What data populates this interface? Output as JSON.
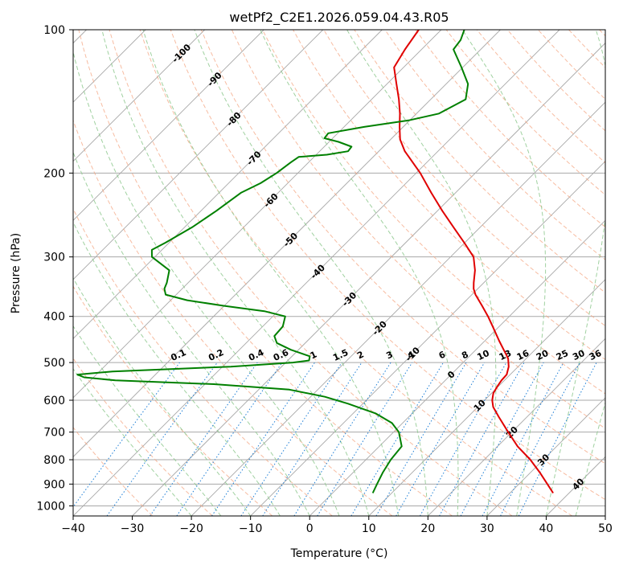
{
  "chart_data": {
    "type": "line",
    "title": "wetPf2_C2E1.2026.059.04.43.R05",
    "xlabel": "Temperature (°C)",
    "ylabel": "Pressure (hPa)",
    "xlim": [
      -40,
      50
    ],
    "ylim": [
      1050,
      100
    ],
    "y_scale": "log",
    "skew": "skew-T",
    "grid": true,
    "x_ticks": [
      "−40",
      "−30",
      "−20",
      "−10",
      "0",
      "10",
      "20",
      "30",
      "40",
      "50"
    ],
    "x_tick_values": [
      -40,
      -30,
      -20,
      -10,
      0,
      10,
      20,
      30,
      40,
      50
    ],
    "y_ticks": [
      "100",
      "200",
      "300",
      "400",
      "500",
      "600",
      "700",
      "800",
      "900",
      "1000"
    ],
    "y_tick_values": [
      100,
      200,
      300,
      400,
      500,
      600,
      700,
      800,
      900,
      1000
    ],
    "colors": {
      "temperature": "#e00000",
      "dewpoint": "#008000",
      "isotherm": "#a8a8a8",
      "dry_adiabat": "#f4a582",
      "moist_adiabat": "#8fc98f",
      "mixing_ratio": "#1e7fd6",
      "isotherm_label": "#1f5f9a",
      "warm_label": "#c83232"
    },
    "series": [
      {
        "key": "temperature",
        "color": "#e00000",
        "points": [
          {
            "p": 940,
            "t": 37.3
          },
          {
            "p": 900,
            "t": 34.8
          },
          {
            "p": 850,
            "t": 31.5
          },
          {
            "p": 800,
            "t": 27.8
          },
          {
            "p": 750,
            "t": 23.4
          },
          {
            "p": 700,
            "t": 19.4
          },
          {
            "p": 650,
            "t": 15.2
          },
          {
            "p": 620,
            "t": 12.6
          },
          {
            "p": 600,
            "t": 11.3
          },
          {
            "p": 580,
            "t": 10.3
          },
          {
            "p": 560,
            "t": 9.8
          },
          {
            "p": 545,
            "t": 9.5
          },
          {
            "p": 530,
            "t": 9.4
          },
          {
            "p": 510,
            "t": 8.4
          },
          {
            "p": 490,
            "t": 6.9
          },
          {
            "p": 470,
            "t": 4.7
          },
          {
            "p": 450,
            "t": 2.4
          },
          {
            "p": 420,
            "t": -1.1
          },
          {
            "p": 400,
            "t": -3.6
          },
          {
            "p": 380,
            "t": -6.4
          },
          {
            "p": 360,
            "t": -9.4
          },
          {
            "p": 350,
            "t": -10.7
          },
          {
            "p": 340,
            "t": -11.7
          },
          {
            "p": 320,
            "t": -13.6
          },
          {
            "p": 300,
            "t": -16.1
          },
          {
            "p": 280,
            "t": -20.1
          },
          {
            "p": 260,
            "t": -24.5
          },
          {
            "p": 240,
            "t": -29.2
          },
          {
            "p": 220,
            "t": -34.1
          },
          {
            "p": 200,
            "t": -39.3
          },
          {
            "p": 180,
            "t": -45.6
          },
          {
            "p": 170,
            "t": -48.4
          },
          {
            "p": 160,
            "t": -50.6
          },
          {
            "p": 150,
            "t": -52.8
          },
          {
            "p": 140,
            "t": -55.4
          },
          {
            "p": 130,
            "t": -58.4
          },
          {
            "p": 120,
            "t": -61.6
          },
          {
            "p": 110,
            "t": -62.8
          },
          {
            "p": 100,
            "t": -63.8
          }
        ]
      },
      {
        "key": "dewpoint",
        "color": "#008000",
        "points": [
          {
            "p": 940,
            "t": 6.8
          },
          {
            "p": 900,
            "t": 6.0
          },
          {
            "p": 850,
            "t": 5.0
          },
          {
            "p": 800,
            "t": 4.2
          },
          {
            "p": 750,
            "t": 3.8
          },
          {
            "p": 700,
            "t": 0.9
          },
          {
            "p": 670,
            "t": -1.8
          },
          {
            "p": 640,
            "t": -6.1
          },
          {
            "p": 610,
            "t": -12.5
          },
          {
            "p": 590,
            "t": -17.6
          },
          {
            "p": 570,
            "t": -24.8
          },
          {
            "p": 555,
            "t": -38.5
          },
          {
            "p": 545,
            "t": -55.8
          },
          {
            "p": 537,
            "t": -61.6
          },
          {
            "p": 530,
            "t": -63.2
          },
          {
            "p": 522,
            "t": -57.8
          },
          {
            "p": 510,
            "t": -38.6
          },
          {
            "p": 500,
            "t": -28.8
          },
          {
            "p": 495,
            "t": -26.4
          },
          {
            "p": 485,
            "t": -27.0
          },
          {
            "p": 470,
            "t": -31.3
          },
          {
            "p": 455,
            "t": -34.8
          },
          {
            "p": 440,
            "t": -36.4
          },
          {
            "p": 420,
            "t": -36.6
          },
          {
            "p": 400,
            "t": -37.9
          },
          {
            "p": 390,
            "t": -42.3
          },
          {
            "p": 380,
            "t": -50.1
          },
          {
            "p": 370,
            "t": -57.2
          },
          {
            "p": 360,
            "t": -61.8
          },
          {
            "p": 350,
            "t": -63.0
          },
          {
            "p": 340,
            "t": -63.6
          },
          {
            "p": 320,
            "t": -65.3
          },
          {
            "p": 300,
            "t": -70.5
          },
          {
            "p": 290,
            "t": -71.7
          },
          {
            "p": 280,
            "t": -70.6
          },
          {
            "p": 260,
            "t": -68.7
          },
          {
            "p": 240,
            "t": -67.4
          },
          {
            "p": 220,
            "t": -66.3
          },
          {
            "p": 210,
            "t": -64.6
          },
          {
            "p": 200,
            "t": -63.6
          },
          {
            "p": 190,
            "t": -63.0
          },
          {
            "p": 185,
            "t": -62.6
          },
          {
            "p": 183,
            "t": -58.2
          },
          {
            "p": 180,
            "t": -55.2
          },
          {
            "p": 176,
            "t": -55.4
          },
          {
            "p": 172,
            "t": -58.4
          },
          {
            "p": 169,
            "t": -61.4
          },
          {
            "p": 165,
            "t": -61.6
          },
          {
            "p": 160,
            "t": -56.6
          },
          {
            "p": 155,
            "t": -50.2
          },
          {
            "p": 150,
            "t": -46.2
          },
          {
            "p": 140,
            "t": -44.1
          },
          {
            "p": 130,
            "t": -46.3
          },
          {
            "p": 120,
            "t": -50.2
          },
          {
            "p": 110,
            "t": -54.6
          },
          {
            "p": 105,
            "t": -55.0
          },
          {
            "p": 100,
            "t": -56.1
          }
        ]
      }
    ],
    "isotherm_labels": [
      {
        "text": "-100",
        "t": -100,
        "p": 112
      },
      {
        "text": "-90",
        "t": -90,
        "p": 127
      },
      {
        "text": "-80",
        "t": -80,
        "p": 154
      },
      {
        "text": "-70",
        "t": -70,
        "p": 186
      },
      {
        "text": "-60",
        "t": -60,
        "p": 228
      },
      {
        "text": "-50",
        "t": -50,
        "p": 276
      },
      {
        "text": "-40",
        "t": -40,
        "p": 322
      },
      {
        "text": "-30",
        "t": -30,
        "p": 368
      },
      {
        "text": "-20",
        "t": -20,
        "p": 423
      },
      {
        "text": "-10",
        "t": -10,
        "p": 480
      },
      {
        "text": "0",
        "t": 0,
        "p": 530
      },
      {
        "text": "10",
        "t": 10,
        "p": 615
      },
      {
        "text": "20",
        "t": 20,
        "p": 700
      },
      {
        "text": "30",
        "t": 30,
        "p": 800
      },
      {
        "text": "40",
        "t": 40,
        "p": 900
      }
    ],
    "mixing_ratio_labels": [
      "0.1",
      "0.2",
      "0.4",
      "0.6",
      "1",
      "1.5",
      "2",
      "3",
      "4",
      "6",
      "8",
      "10",
      "13",
      "16",
      "20",
      "25",
      "30",
      "36"
    ],
    "mixing_ratio_values": [
      0.1,
      0.2,
      0.4,
      0.6,
      1,
      1.5,
      2,
      3,
      4,
      6,
      8,
      10,
      13,
      16,
      20,
      25,
      30,
      36
    ],
    "mixing_ratio_label_pressure": 500
  }
}
